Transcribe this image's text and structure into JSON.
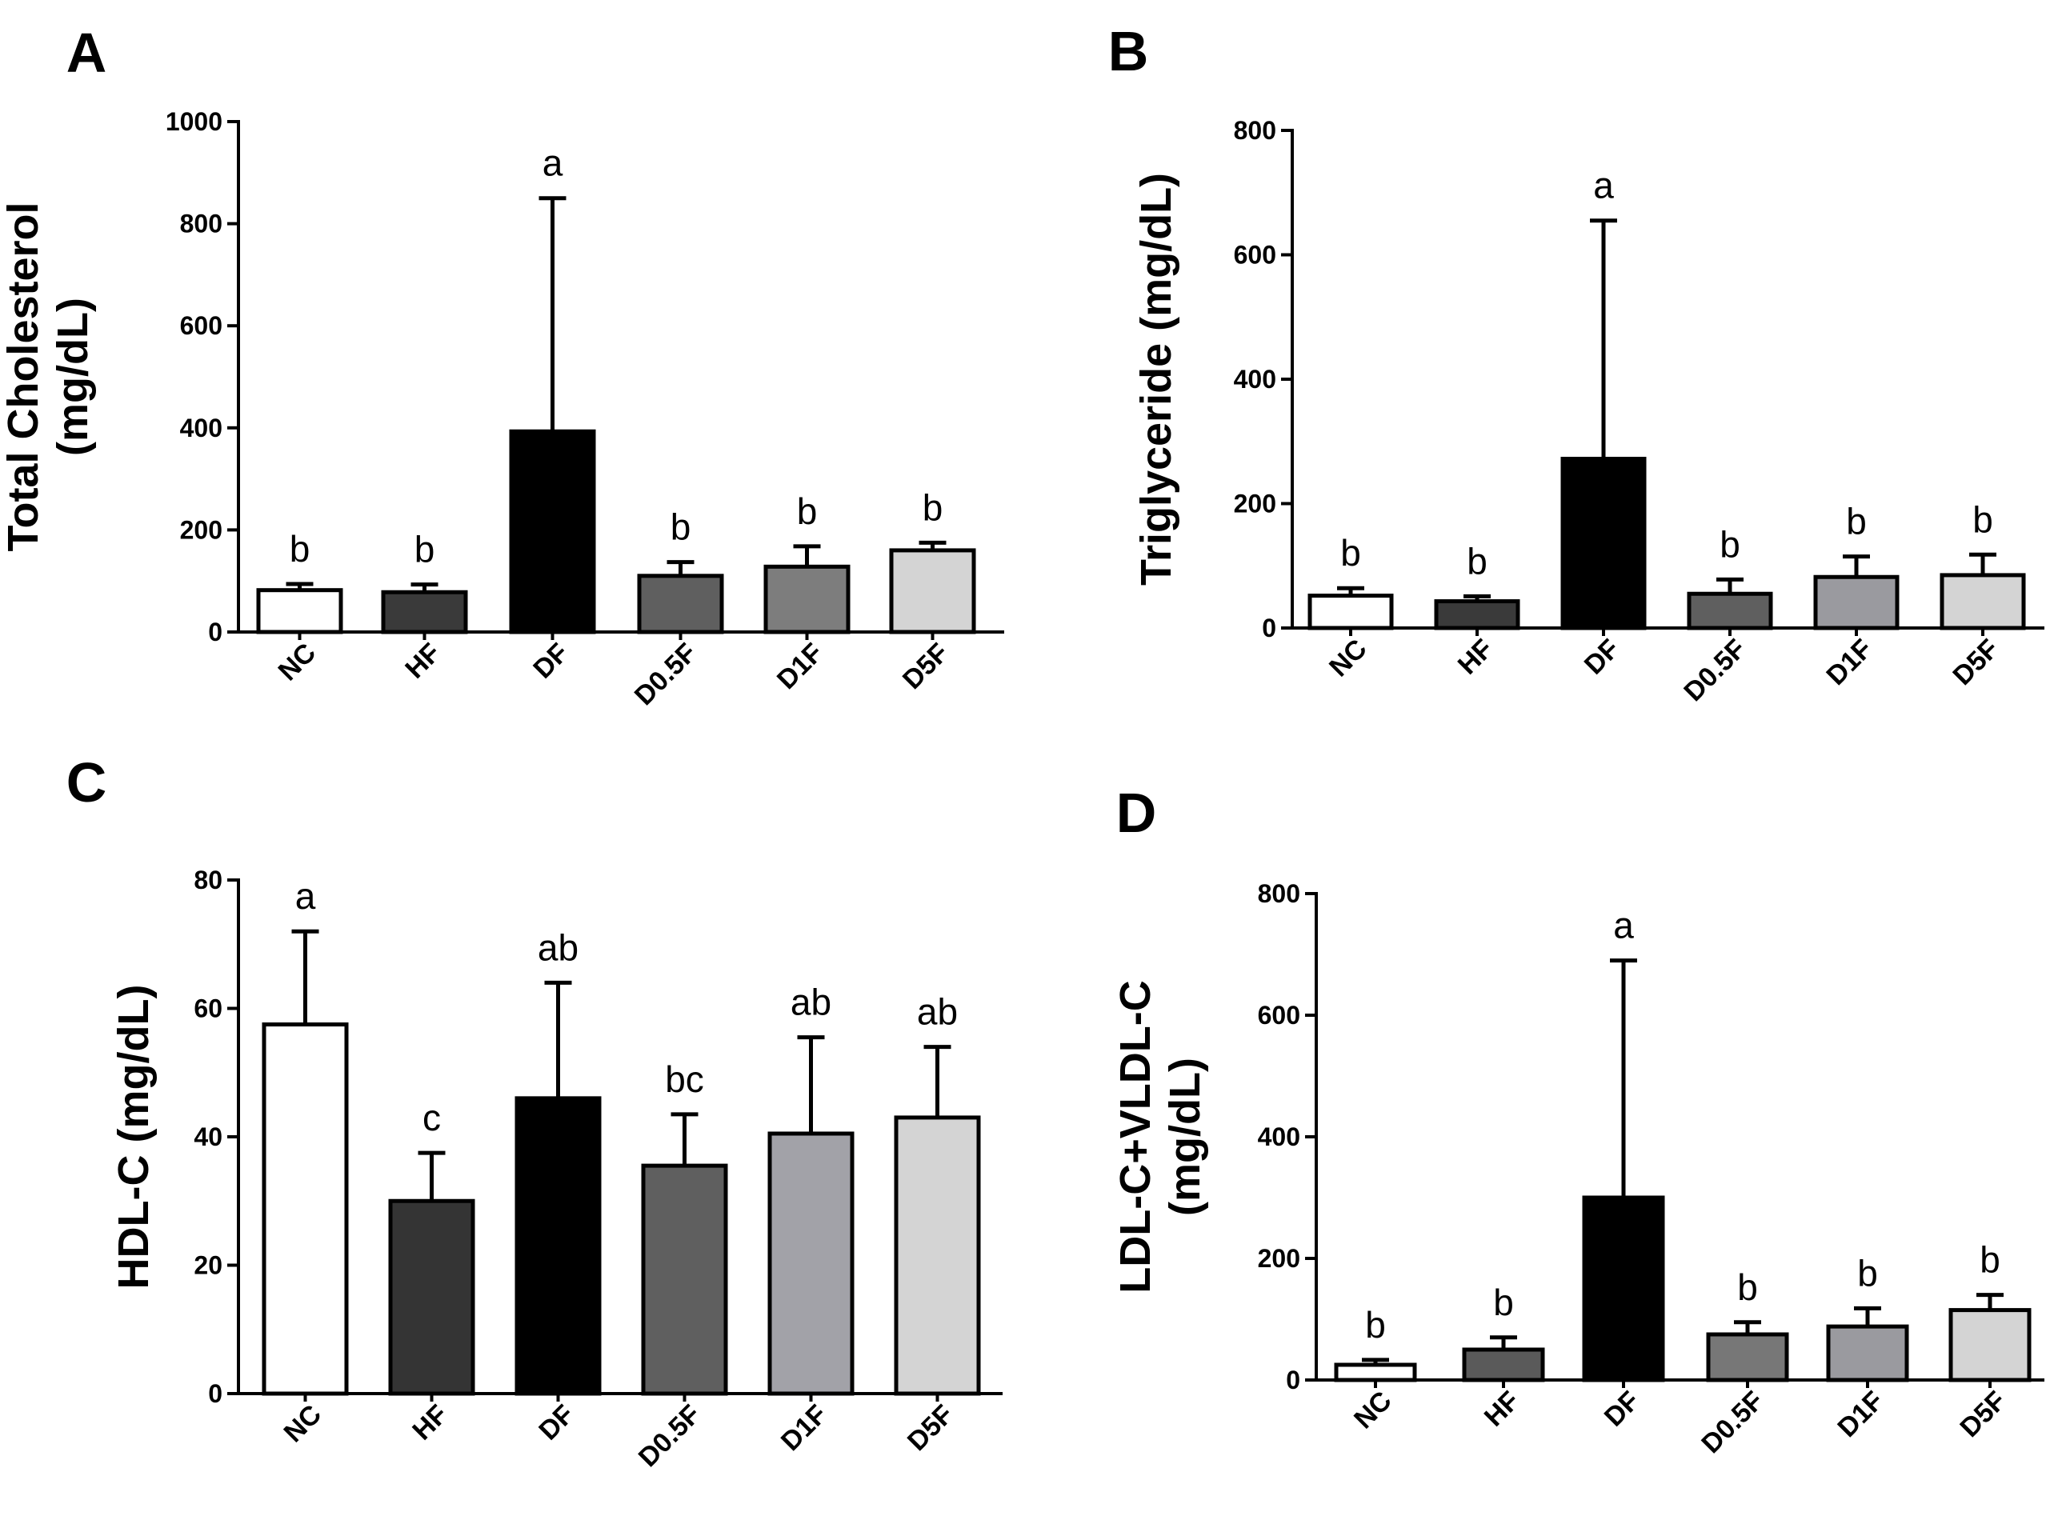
{
  "chart_data": [
    {
      "type": "bar",
      "panel": "A",
      "title": "",
      "xlabel": "",
      "ylabel": "Total Cholesterol\n(mg/dL)",
      "ylim": [
        0,
        1000
      ],
      "yticks": [
        0,
        200,
        400,
        600,
        800,
        1000
      ],
      "categories": [
        "NC",
        "HF",
        "DF",
        "D0.5F",
        "D1F",
        "D5F"
      ],
      "values": [
        82,
        78,
        393,
        110,
        128,
        160
      ],
      "errors": [
        12,
        15,
        457,
        27,
        40,
        15
      ],
      "annotations": [
        "b",
        "b",
        "a",
        "b",
        "b",
        "b"
      ],
      "colors": [
        "#ffffff",
        "#3a3a3a",
        "#000000",
        "#5f5f5f",
        "#7d7d7d",
        "#d4d4d4"
      ]
    },
    {
      "type": "bar",
      "panel": "B",
      "title": "",
      "xlabel": "",
      "ylabel": "Triglyceride (mg/dL)",
      "ylim": [
        0,
        800
      ],
      "yticks": [
        0,
        200,
        400,
        600,
        800
      ],
      "categories": [
        "NC",
        "HF",
        "DF",
        "D0.5F",
        "D1F",
        "D5F"
      ],
      "values": [
        52,
        43,
        272,
        55,
        82,
        85
      ],
      "errors": [
        12,
        8,
        383,
        23,
        33,
        33
      ],
      "annotations": [
        "b",
        "b",
        "a",
        "b",
        "b",
        "b"
      ],
      "colors": [
        "#ffffff",
        "#3a3a3a",
        "#000000",
        "#5f5f5f",
        "#9a9a9f",
        "#d4d4d4"
      ]
    },
    {
      "type": "bar",
      "panel": "C",
      "title": "",
      "xlabel": "",
      "ylabel": "HDL-C (mg/dL)",
      "ylim": [
        0,
        80
      ],
      "yticks": [
        0,
        20,
        40,
        60,
        80
      ],
      "categories": [
        "NC",
        "HF",
        "DF",
        "D0.5F",
        "D1F",
        "D5F"
      ],
      "values": [
        57.5,
        30,
        46,
        35.5,
        40.5,
        43
      ],
      "errors": [
        14.5,
        7.5,
        18,
        8,
        15,
        11
      ],
      "annotations": [
        "a",
        "c",
        "ab",
        "bc",
        "ab",
        "ab"
      ],
      "colors": [
        "#ffffff",
        "#343434",
        "#000000",
        "#5f5f5f",
        "#a2a2a8",
        "#d4d4d4"
      ]
    },
    {
      "type": "bar",
      "panel": "D",
      "title": "",
      "xlabel": "",
      "ylabel": "LDL-C+VLDL-C\n(mg/dL)",
      "ylim": [
        0,
        800
      ],
      "yticks": [
        0,
        200,
        400,
        600,
        800
      ],
      "categories": [
        "NC",
        "HF",
        "DF",
        "D0.5F",
        "D1F",
        "D5F"
      ],
      "values": [
        25,
        50,
        300,
        75,
        88,
        115
      ],
      "errors": [
        8,
        20,
        390,
        20,
        30,
        25
      ],
      "annotations": [
        "b",
        "b",
        "a",
        "b",
        "b",
        "b"
      ],
      "colors": [
        "#ffffff",
        "#5a5a5a",
        "#000000",
        "#777777",
        "#9a9a9f",
        "#d4d4d4"
      ]
    }
  ]
}
